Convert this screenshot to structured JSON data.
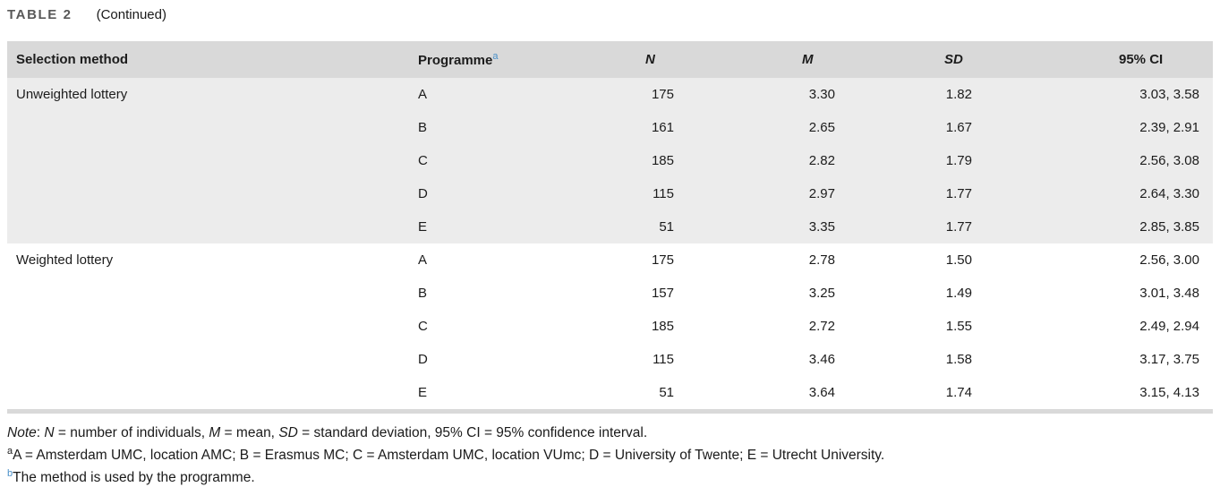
{
  "caption": {
    "label": "TABLE 2",
    "continued": "(Continued)"
  },
  "colors": {
    "header_band": "#d9d9d9",
    "group_band": "#ececec",
    "superscript_blue": "#4a90c9",
    "caption_gray": "#595959"
  },
  "table": {
    "columns": [
      {
        "label": "Selection method"
      },
      {
        "label": "Programme",
        "superscript": "a"
      },
      {
        "label": "N"
      },
      {
        "label": "M"
      },
      {
        "label": "SD"
      },
      {
        "label": "95% CI"
      }
    ],
    "groups": [
      {
        "method": "Unweighted lottery",
        "rows": [
          {
            "programme": "A",
            "n": "175",
            "m": "3.30",
            "sd": "1.82",
            "ci": "3.03, 3.58"
          },
          {
            "programme": "B",
            "n": "161",
            "m": "2.65",
            "sd": "1.67",
            "ci": "2.39, 2.91"
          },
          {
            "programme": "C",
            "n": "185",
            "m": "2.82",
            "sd": "1.79",
            "ci": "2.56, 3.08"
          },
          {
            "programme": "D",
            "n": "115",
            "m": "2.97",
            "sd": "1.77",
            "ci": "2.64, 3.30"
          },
          {
            "programme": "E",
            "n": "51",
            "m": "3.35",
            "sd": "1.77",
            "ci": "2.85, 3.85"
          }
        ]
      },
      {
        "method": "Weighted lottery",
        "rows": [
          {
            "programme": "A",
            "n": "175",
            "m": "2.78",
            "sd": "1.50",
            "ci": "2.56, 3.00"
          },
          {
            "programme": "B",
            "n": "157",
            "m": "3.25",
            "sd": "1.49",
            "ci": "3.01, 3.48"
          },
          {
            "programme": "C",
            "n": "185",
            "m": "2.72",
            "sd": "1.55",
            "ci": "2.49, 2.94"
          },
          {
            "programme": "D",
            "n": "115",
            "m": "3.46",
            "sd": "1.58",
            "ci": "3.17, 3.75"
          },
          {
            "programme": "E",
            "n": "51",
            "m": "3.64",
            "sd": "1.74",
            "ci": "3.15, 4.13"
          }
        ]
      }
    ]
  },
  "note": {
    "segments": [
      {
        "text": "Note",
        "italic": true
      },
      {
        "text": ": ",
        "italic": false
      },
      {
        "text": "N",
        "italic": true
      },
      {
        "text": " = number of individuals, ",
        "italic": false
      },
      {
        "text": "M",
        "italic": true
      },
      {
        "text": " = mean, ",
        "italic": false
      },
      {
        "text": "SD",
        "italic": true
      },
      {
        "text": " = standard deviation, 95% CI = 95% confidence interval.",
        "italic": false
      }
    ]
  },
  "footnote_a": {
    "marker": "a",
    "text": "A = Amsterdam UMC, location AMC; B = Erasmus MC; C = Amsterdam UMC, location VUmc; D = University of Twente; E = Utrecht University."
  },
  "footnote_b": {
    "marker": "b",
    "text": "The method is used by the programme."
  }
}
